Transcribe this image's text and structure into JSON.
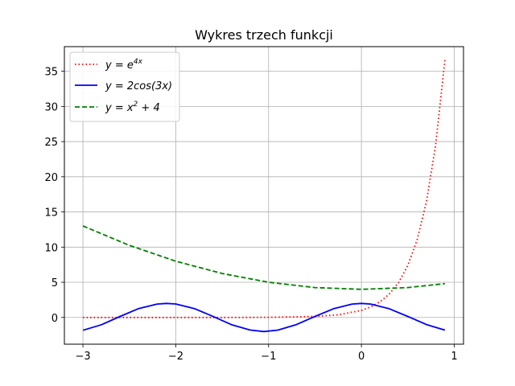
{
  "chart_data": {
    "type": "line",
    "title": "Wykres trzech funkcji",
    "xlabel": "",
    "ylabel": "",
    "xlim": [
      -3.2,
      1.1
    ],
    "ylim": [
      -3.8,
      38.5
    ],
    "grid": true,
    "legend_position": "top-left",
    "x_ticks": [
      -3,
      -2,
      -1,
      0,
      1
    ],
    "x_tick_labels": [
      "−3",
      "−2",
      "−1",
      "0",
      "1"
    ],
    "y_ticks": [
      0,
      5,
      10,
      15,
      20,
      25,
      30,
      35
    ],
    "y_tick_labels": [
      "0",
      "5",
      "10",
      "15",
      "20",
      "25",
      "30",
      "35"
    ],
    "series": [
      {
        "name": "y = e^{4x}",
        "legend_label": "y = e4x",
        "color": "#ff0000",
        "style": "dotted",
        "x": [
          -3.0,
          -2.5,
          -2.0,
          -1.5,
          -1.0,
          -0.5,
          -0.25,
          0.0,
          0.1,
          0.2,
          0.3,
          0.4,
          0.5,
          0.6,
          0.7,
          0.8,
          0.9
        ],
        "y": [
          0.0,
          0.0,
          0.0,
          0.0,
          0.02,
          0.14,
          0.37,
          1.0,
          1.49,
          2.23,
          3.32,
          4.95,
          7.39,
          11.02,
          16.44,
          24.53,
          36.6
        ]
      },
      {
        "name": "y = 2cos(3x)",
        "legend_label": "y = 2cos(3x)",
        "color": "#0000ff",
        "style": "solid",
        "x": [
          -3.0,
          -2.8,
          -2.6,
          -2.4,
          -2.2,
          -2.1,
          -2.0,
          -1.8,
          -1.6,
          -1.4,
          -1.2,
          -1.05,
          -0.9,
          -0.7,
          -0.5,
          -0.3,
          -0.1,
          0.0,
          0.1,
          0.3,
          0.5,
          0.7,
          0.9
        ],
        "y": [
          -1.82,
          -1.03,
          0.14,
          1.26,
          1.91,
          2.0,
          1.92,
          1.27,
          0.15,
          -1.02,
          -1.79,
          -2.0,
          -1.8,
          -1.01,
          0.14,
          1.24,
          1.91,
          2.0,
          1.91,
          1.24,
          0.14,
          -1.01,
          -1.8
        ]
      },
      {
        "name": "y = x^2 + 4",
        "legend_label": "y = x2 + 4",
        "color": "#008000",
        "style": "dashed",
        "x": [
          -3.0,
          -2.5,
          -2.0,
          -1.5,
          -1.0,
          -0.5,
          0.0,
          0.5,
          0.9
        ],
        "y": [
          13.0,
          10.25,
          8.0,
          6.25,
          5.0,
          4.25,
          4.0,
          4.25,
          4.81
        ]
      }
    ]
  }
}
